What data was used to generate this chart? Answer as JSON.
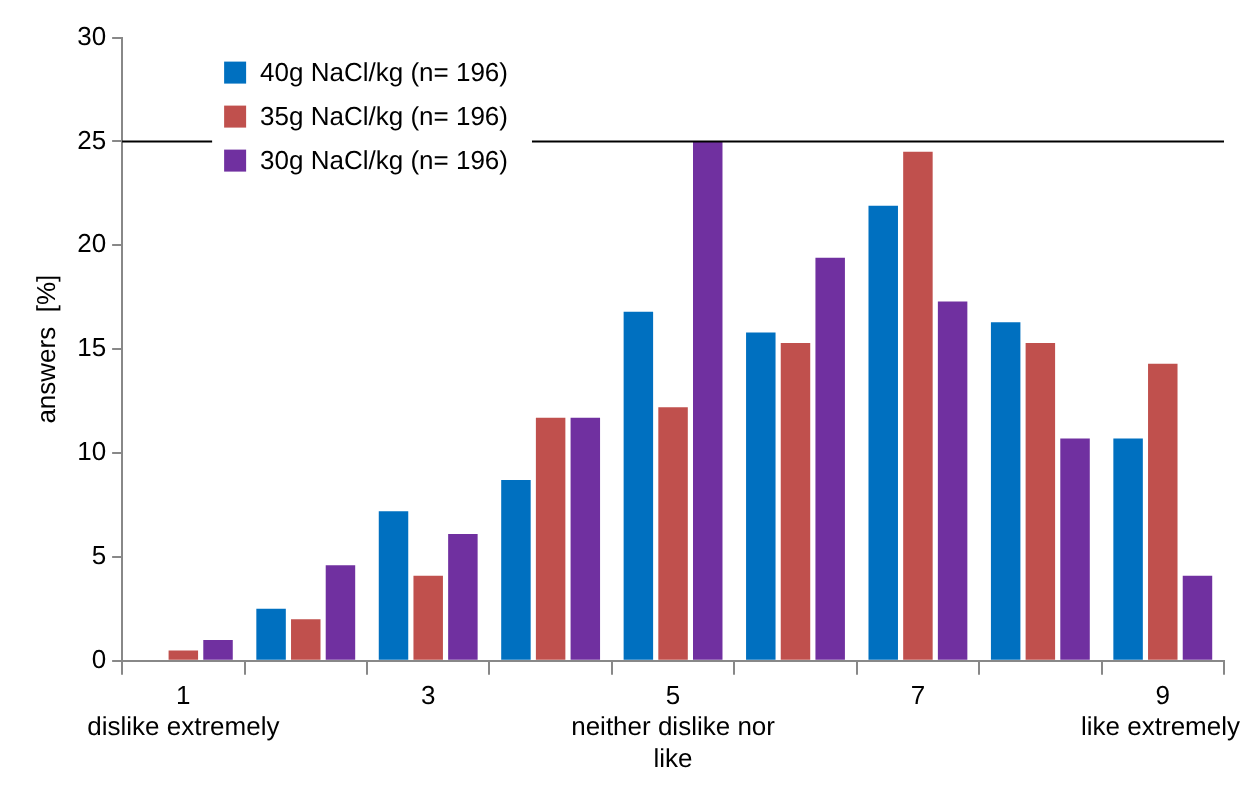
{
  "chart_data": {
    "type": "bar",
    "ylabel": "answers  [%]",
    "categories": [
      "1",
      null,
      "3",
      null,
      "5",
      null,
      "7",
      null,
      "9"
    ],
    "series": [
      {
        "name": "40g NaCl/kg (n= 196)",
        "color": "#0070c0",
        "values": [
          0,
          2.5,
          7.2,
          8.7,
          16.8,
          15.8,
          21.9,
          16.3,
          10.7
        ]
      },
      {
        "name": "35g NaCl/kg (n= 196)",
        "color": "#c0504d",
        "values": [
          0.5,
          2.0,
          4.1,
          11.7,
          12.2,
          15.3,
          24.5,
          15.3,
          14.3
        ]
      },
      {
        "name": "30g NaCl/kg (n= 196)",
        "color": "#7030a0",
        "values": [
          1.0,
          4.6,
          6.1,
          11.7,
          25.0,
          19.4,
          17.3,
          10.7,
          4.1
        ]
      }
    ],
    "ylim": [
      0,
      30
    ],
    "yticks": [
      0,
      5,
      10,
      15,
      20,
      25,
      30
    ],
    "grid": false,
    "legend": "top left",
    "ref_lines": [
      {
        "axis": "y",
        "value": 25,
        "color": "#000000"
      }
    ],
    "annotations": [
      "dislike extremely",
      "neither dislike nor like",
      "like extremely"
    ]
  }
}
